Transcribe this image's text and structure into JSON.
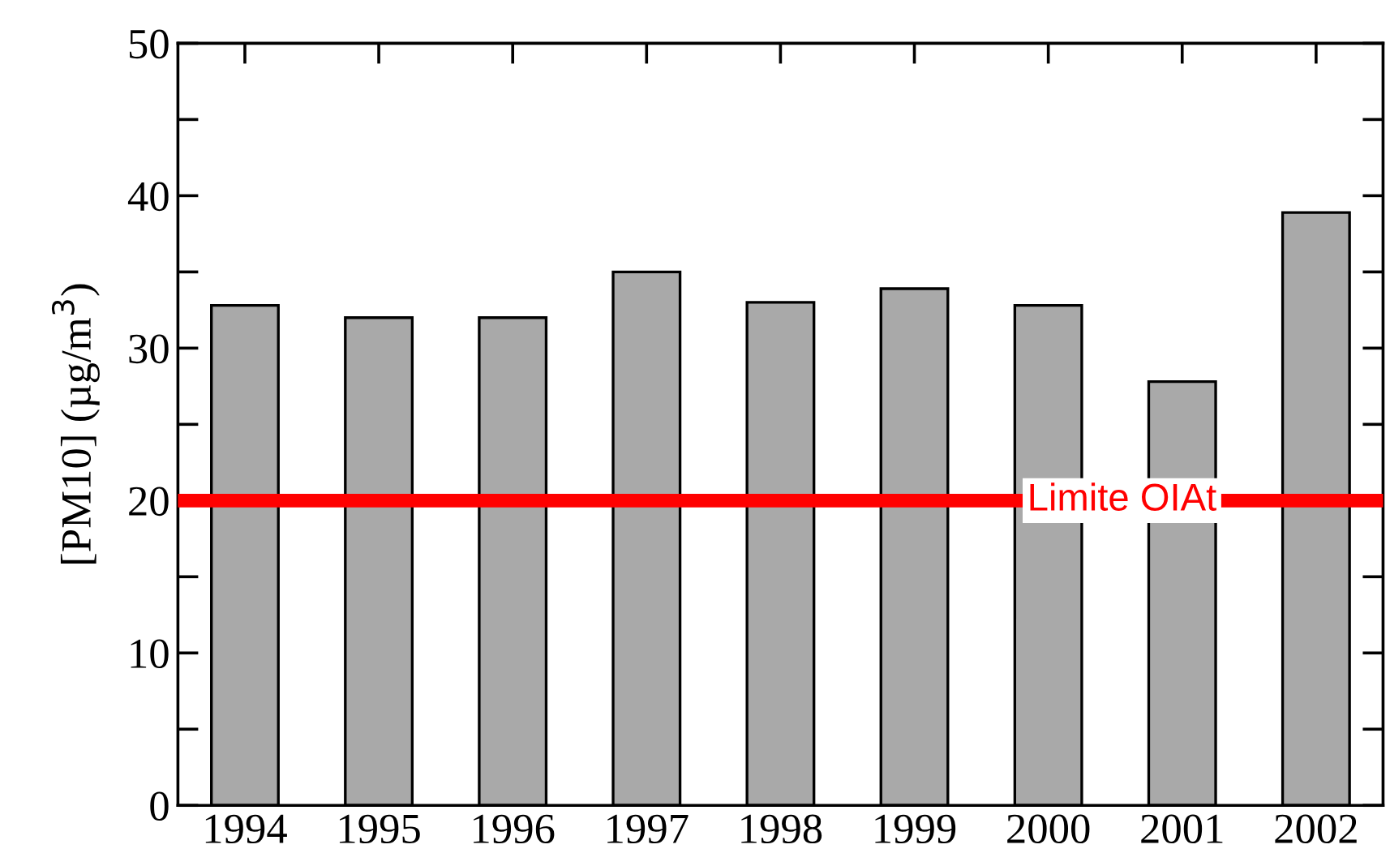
{
  "chart_data": {
    "type": "bar",
    "categories": [
      "1994",
      "1995",
      "1996",
      "1997",
      "1998",
      "1999",
      "2000",
      "2001",
      "2002"
    ],
    "values": [
      32.8,
      32,
      32,
      35,
      33,
      33.9,
      32.8,
      27.8,
      38.9
    ],
    "color": "#a9a9a9",
    "ylabel": "[PM10] (µg/m$^{3}$)",
    "ylim": [
      0,
      50
    ],
    "yticks": [
      0,
      {
        "value": 5,
        "label": null
      },
      10,
      {
        "value": 15,
        "label": null
      },
      20,
      {
        "value": 25,
        "label": null
      },
      30,
      {
        "value": 35,
        "label": null
      },
      40,
      {
        "value": 45,
        "label": null
      },
      50
    ],
    "ref_lines": [
      {
        "axis": "y",
        "value": 20,
        "label": "Limite OIAt",
        "color": "#ff0000",
        "line_style": "solid"
      }
    ],
    "grid": false,
    "legend": false
  }
}
